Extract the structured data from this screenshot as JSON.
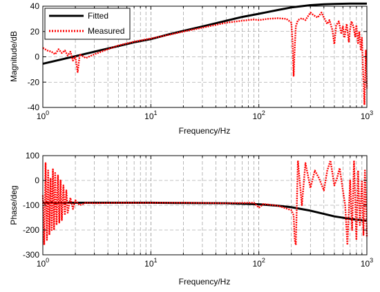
{
  "chart_data": [
    {
      "type": "line",
      "name": "magnitude",
      "title": "",
      "xlabel": "Frequency/Hz",
      "ylabel": "Magnitude/dB",
      "xscale": "log",
      "xlim": [
        1,
        1000
      ],
      "ylim": [
        -40,
        40
      ],
      "x_ticks": [
        1,
        10,
        100,
        1000
      ],
      "x_tick_labels": [
        {
          "base": "10",
          "exp": "0"
        },
        {
          "base": "10",
          "exp": "1"
        },
        {
          "base": "10",
          "exp": "2"
        },
        {
          "base": "10",
          "exp": "3"
        }
      ],
      "y_ticks": [
        -40,
        -20,
        0,
        20,
        40
      ],
      "y_tick_labels": [
        "-40",
        "-20",
        "0",
        "20",
        "40"
      ],
      "grid": true,
      "legend": {
        "position": "top-left",
        "entries": [
          "Fitted",
          "Measured"
        ]
      },
      "series": [
        {
          "name": "Fitted",
          "color": "#000000",
          "style": "solid",
          "x": [
            1,
            1.5,
            2,
            3,
            5,
            7,
            10,
            15,
            20,
            30,
            50,
            70,
            100,
            150,
            200,
            300,
            400,
            500,
            700,
            1000
          ],
          "y": [
            -5.5,
            -2,
            0.5,
            4,
            8.5,
            11.5,
            14,
            18,
            20.5,
            24,
            28.5,
            31.5,
            34,
            37,
            39,
            40.8,
            41.5,
            41.8,
            42,
            42
          ]
        },
        {
          "name": "Measured",
          "color": "#ff0000",
          "style": "dotted",
          "x": [
            1,
            1.1,
            1.2,
            1.3,
            1.4,
            1.5,
            1.6,
            1.7,
            1.8,
            1.9,
            2,
            2.1,
            2.2,
            2.5,
            3,
            4,
            5,
            7,
            10,
            15,
            20,
            30,
            50,
            70,
            90,
            100,
            120,
            150,
            180,
            200,
            205,
            210,
            215,
            220,
            230,
            250,
            270,
            300,
            320,
            350,
            380,
            400,
            430,
            450,
            480,
            500,
            520,
            550,
            580,
            600,
            620,
            650,
            680,
            700,
            720,
            750,
            780,
            800,
            830,
            850,
            880,
            900,
            920,
            950,
            980,
            1000
          ],
          "y": [
            7,
            5,
            4,
            2,
            6,
            3,
            5,
            1,
            4,
            -3,
            0,
            -12,
            2,
            -1,
            2,
            6,
            9,
            12,
            14.5,
            17.5,
            20,
            23,
            27,
            28.5,
            29.5,
            29,
            30,
            30.5,
            30,
            27,
            12,
            -15,
            8,
            24,
            29,
            30.5,
            29,
            35,
            33,
            31,
            35,
            31,
            26,
            29,
            21,
            10,
            25,
            28,
            18,
            24,
            15,
            26,
            12,
            22,
            28,
            24,
            16,
            25,
            10,
            20,
            5,
            15,
            -8,
            -38,
            5,
            -25
          ]
        }
      ]
    },
    {
      "type": "line",
      "name": "phase",
      "title": "",
      "xlabel": "Frequency/Hz",
      "ylabel": "Phase/deg",
      "xscale": "log",
      "xlim": [
        1,
        1000
      ],
      "ylim": [
        -300,
        100
      ],
      "x_ticks": [
        1,
        10,
        100,
        1000
      ],
      "x_tick_labels": [
        {
          "base": "10",
          "exp": "0"
        },
        {
          "base": "10",
          "exp": "1"
        },
        {
          "base": "10",
          "exp": "2"
        },
        {
          "base": "10",
          "exp": "3"
        }
      ],
      "y_ticks": [
        -300,
        -200,
        -100,
        0,
        100
      ],
      "y_tick_labels": [
        "-300",
        "-200",
        "-100",
        "0",
        "100"
      ],
      "grid": true,
      "series": [
        {
          "name": "Fitted",
          "color": "#000000",
          "style": "solid",
          "x": [
            1,
            2,
            5,
            10,
            20,
            50,
            100,
            150,
            200,
            300,
            400,
            500,
            700,
            1000
          ],
          "y": [
            -90,
            -90,
            -90,
            -90,
            -91,
            -92,
            -96,
            -102,
            -108,
            -122,
            -135,
            -145,
            -155,
            -163
          ]
        },
        {
          "name": "Measured",
          "color": "#ff0000",
          "style": "dotted",
          "x": [
            1,
            1.03,
            1.06,
            1.09,
            1.12,
            1.15,
            1.18,
            1.21,
            1.24,
            1.27,
            1.3,
            1.34,
            1.38,
            1.42,
            1.46,
            1.5,
            1.55,
            1.6,
            1.65,
            1.7,
            1.8,
            1.9,
            2,
            2.2,
            2.5,
            3,
            5,
            10,
            20,
            50,
            90,
            100,
            110,
            150,
            200,
            210,
            215,
            220,
            230,
            250,
            270,
            300,
            330,
            360,
            400,
            430,
            460,
            500,
            530,
            560,
            600,
            630,
            660,
            700,
            730,
            760,
            800,
            830,
            860,
            900,
            930,
            960,
            1000
          ],
          "y": [
            -60,
            -260,
            70,
            -240,
            40,
            -220,
            10,
            -200,
            45,
            -200,
            30,
            -180,
            20,
            -170,
            0,
            -160,
            -20,
            -140,
            -40,
            -130,
            -70,
            -115,
            -80,
            -100,
            -90,
            -92,
            -90,
            -90,
            -90,
            -92,
            -90,
            -110,
            -95,
            -102,
            -120,
            -140,
            -240,
            -260,
            80,
            -100,
            70,
            -30,
            40,
            10,
            -40,
            40,
            80,
            -20,
            10,
            50,
            -40,
            -100,
            -260,
            0,
            -200,
            80,
            -240,
            40,
            -180,
            0,
            -220,
            40,
            -230
          ]
        }
      ]
    }
  ]
}
